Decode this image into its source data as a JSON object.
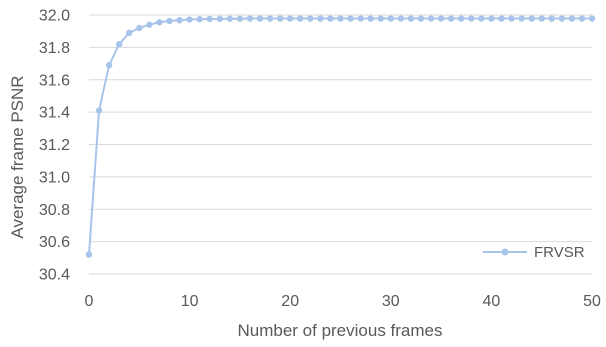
{
  "chart_data": {
    "type": "line",
    "title": "",
    "xlabel": "Number of previous frames",
    "ylabel": "Average frame PSNR",
    "xlim": [
      0,
      50
    ],
    "ylim": [
      30.4,
      32.0
    ],
    "x_ticks": [
      "0",
      "10",
      "20",
      "30",
      "40",
      "50"
    ],
    "y_ticks": [
      "30.4",
      "30.6",
      "30.8",
      "31.0",
      "31.2",
      "31.4",
      "31.6",
      "31.8",
      "32.0"
    ],
    "grid": "horizontal",
    "legend_position": "bottom-right",
    "series": [
      {
        "name": "FRVSR",
        "color": "#a9c4eb",
        "x": [
          0,
          1,
          2,
          3,
          4,
          5,
          6,
          7,
          8,
          9,
          10,
          11,
          12,
          13,
          14,
          15,
          16,
          17,
          18,
          19,
          20,
          21,
          22,
          23,
          24,
          25,
          26,
          27,
          28,
          29,
          30,
          31,
          32,
          33,
          34,
          35,
          36,
          37,
          38,
          39,
          40,
          41,
          42,
          43,
          44,
          45,
          46,
          47,
          48,
          49,
          50
        ],
        "values": [
          30.52,
          31.41,
          31.69,
          31.82,
          31.89,
          31.92,
          31.94,
          31.955,
          31.963,
          31.968,
          31.972,
          31.974,
          31.975,
          31.976,
          31.977,
          31.977,
          31.978,
          31.978,
          31.978,
          31.978,
          31.978,
          31.978,
          31.978,
          31.978,
          31.978,
          31.978,
          31.978,
          31.978,
          31.978,
          31.978,
          31.978,
          31.978,
          31.978,
          31.978,
          31.978,
          31.978,
          31.978,
          31.978,
          31.978,
          31.978,
          31.978,
          31.978,
          31.978,
          31.978,
          31.978,
          31.978,
          31.978,
          31.978,
          31.978,
          31.978,
          31.978
        ]
      }
    ]
  }
}
